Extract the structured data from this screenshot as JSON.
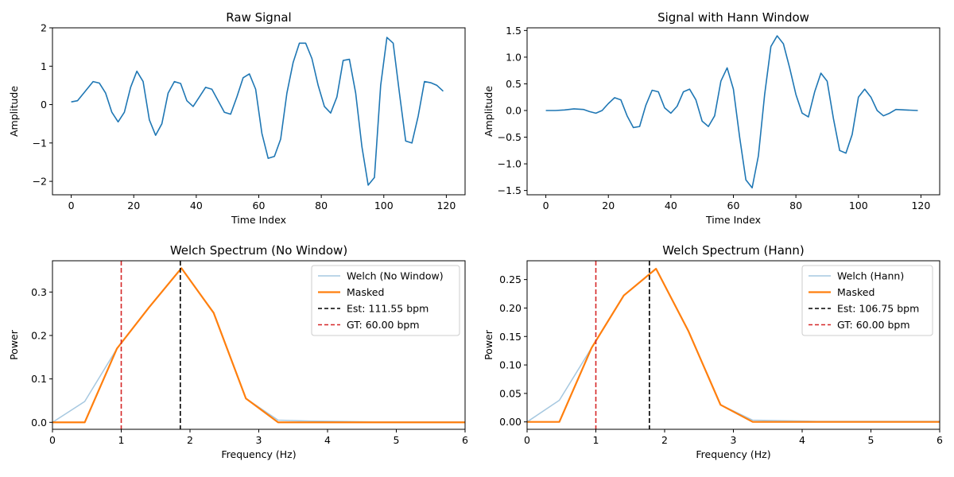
{
  "chart_data": [
    {
      "type": "line",
      "title": "Raw Signal",
      "xlabel": "Time Index",
      "ylabel": "Amplitude",
      "xlim": [
        -6,
        126
      ],
      "ylim": [
        -2.35,
        2.0
      ],
      "xticks": [
        0,
        20,
        40,
        60,
        80,
        100,
        120
      ],
      "xtick_labels": [
        "0",
        "20",
        "40",
        "60",
        "80",
        "100",
        "120"
      ],
      "yticks": [
        -2,
        -1,
        0,
        1,
        2
      ],
      "ytick_labels": [
        "−2",
        "−1",
        "0",
        "1",
        "2"
      ],
      "grid": false,
      "series": [
        {
          "color": "#1f77b4",
          "x": [
            0,
            2,
            4,
            7,
            9,
            11,
            13,
            15,
            17,
            19,
            21,
            23,
            25,
            27,
            29,
            31,
            33,
            35,
            37,
            39,
            41,
            43,
            45,
            47,
            49,
            51,
            53,
            55,
            57,
            59,
            61,
            63,
            65,
            67,
            69,
            71,
            73,
            75,
            77,
            79,
            81,
            83,
            85,
            87,
            89,
            91,
            93,
            95,
            97,
            99,
            101,
            103,
            105,
            107,
            109,
            111,
            113,
            115,
            117,
            119
          ],
          "y": [
            0.07,
            0.1,
            0.3,
            0.6,
            0.56,
            0.3,
            -0.2,
            -0.45,
            -0.2,
            0.45,
            0.87,
            0.6,
            -0.4,
            -0.8,
            -0.5,
            0.3,
            0.6,
            0.55,
            0.1,
            -0.05,
            0.2,
            0.45,
            0.4,
            0.1,
            -0.2,
            -0.25,
            0.2,
            0.7,
            0.8,
            0.4,
            -0.75,
            -1.4,
            -1.35,
            -0.9,
            0.3,
            1.1,
            1.6,
            1.6,
            1.2,
            0.5,
            -0.05,
            -0.22,
            0.2,
            1.15,
            1.18,
            0.3,
            -1.1,
            -2.1,
            -1.9,
            0.5,
            1.75,
            1.6,
            0.3,
            -0.95,
            -1.0,
            -0.3,
            0.6,
            0.57,
            0.5,
            0.35
          ]
        }
      ]
    },
    {
      "type": "line",
      "title": "Signal with Hann Window",
      "xlabel": "Time Index",
      "ylabel": "Amplitude",
      "xlim": [
        -6,
        126
      ],
      "ylim": [
        -1.58,
        1.55
      ],
      "xticks": [
        0,
        20,
        40,
        60,
        80,
        100,
        120
      ],
      "xtick_labels": [
        "0",
        "20",
        "40",
        "60",
        "80",
        "100",
        "120"
      ],
      "yticks": [
        -1.5,
        -1.0,
        -0.5,
        0.0,
        0.5,
        1.0,
        1.5
      ],
      "ytick_labels": [
        "−1.5",
        "−1.0",
        "−0.5",
        "0.0",
        "0.5",
        "1.0",
        "1.5"
      ],
      "grid": false,
      "series": [
        {
          "color": "#1f77b4",
          "x": [
            0,
            3,
            6,
            9,
            12,
            14,
            16,
            18,
            20,
            22,
            24,
            26,
            28,
            30,
            32,
            34,
            36,
            38,
            40,
            42,
            44,
            46,
            48,
            50,
            52,
            54,
            56,
            58,
            60,
            62,
            64,
            66,
            68,
            70,
            72,
            74,
            76,
            78,
            80,
            82,
            84,
            86,
            88,
            90,
            92,
            94,
            96,
            98,
            100,
            102,
            104,
            106,
            108,
            110,
            112,
            115,
            119
          ],
          "y": [
            0.0,
            0.0,
            0.01,
            0.03,
            0.02,
            -0.02,
            -0.05,
            0.0,
            0.13,
            0.24,
            0.2,
            -0.1,
            -0.32,
            -0.3,
            0.1,
            0.38,
            0.35,
            0.05,
            -0.05,
            0.08,
            0.35,
            0.4,
            0.2,
            -0.2,
            -0.3,
            -0.1,
            0.55,
            0.8,
            0.4,
            -0.5,
            -1.3,
            -1.45,
            -0.85,
            0.3,
            1.2,
            1.4,
            1.25,
            0.8,
            0.3,
            -0.05,
            -0.12,
            0.35,
            0.7,
            0.55,
            -0.15,
            -0.75,
            -0.8,
            -0.45,
            0.25,
            0.4,
            0.25,
            0.0,
            -0.1,
            -0.05,
            0.02,
            0.01,
            0.0
          ]
        }
      ]
    },
    {
      "type": "line",
      "title": "Welch Spectrum (No Window)",
      "xlabel": "Frequency (Hz)",
      "ylabel": "Power",
      "xlim": [
        0,
        6
      ],
      "ylim": [
        -0.016,
        0.372
      ],
      "xticks": [
        0,
        1,
        2,
        3,
        4,
        5,
        6
      ],
      "xtick_labels": [
        "0",
        "1",
        "2",
        "3",
        "4",
        "5",
        "6"
      ],
      "yticks": [
        0.0,
        0.1,
        0.2,
        0.3
      ],
      "ytick_labels": [
        "0.0",
        "0.1",
        "0.2",
        "0.3"
      ],
      "grid": false,
      "legend": "top-right",
      "series": [
        {
          "name": "Welch (No Window)",
          "color": "#a6c8e0",
          "style": "solid",
          "x": [
            0,
            0.469,
            0.938,
            1.406,
            1.875,
            2.344,
            2.813,
            3.281,
            3.75,
            4.219,
            4.688,
            5.156,
            5.625,
            6.0
          ],
          "y": [
            0.0,
            0.048,
            0.17,
            0.265,
            0.355,
            0.252,
            0.055,
            0.005,
            0.003,
            0.002,
            0.001,
            0.001,
            0.001,
            0.001
          ]
        },
        {
          "name": "Masked",
          "color": "#ff7f0e",
          "style": "solid",
          "x": [
            0,
            0.469,
            0.938,
            1.406,
            1.875,
            2.344,
            2.813,
            3.281,
            3.75,
            4.219,
            4.688,
            5.156,
            5.625,
            6.0
          ],
          "y": [
            0.0,
            0.0,
            0.17,
            0.265,
            0.355,
            0.252,
            0.055,
            0.0,
            0.0,
            0.0,
            0.0,
            0.0,
            0.0,
            0.0
          ]
        }
      ],
      "vlines": [
        {
          "name": "Est: 111.55 bpm",
          "x": 1.859,
          "color": "#000000"
        },
        {
          "name": "GT: 60.00 bpm",
          "x": 1.0,
          "color": "#d62728"
        }
      ]
    },
    {
      "type": "line",
      "title": "Welch Spectrum (Hann)",
      "xlabel": "Frequency (Hz)",
      "ylabel": "Power",
      "xlim": [
        0,
        6
      ],
      "ylim": [
        -0.013,
        0.283
      ],
      "xticks": [
        0,
        1,
        2,
        3,
        4,
        5,
        6
      ],
      "xtick_labels": [
        "0",
        "1",
        "2",
        "3",
        "4",
        "5",
        "6"
      ],
      "yticks": [
        0.0,
        0.05,
        0.1,
        0.15,
        0.2,
        0.25
      ],
      "ytick_labels": [
        "0.00",
        "0.05",
        "0.10",
        "0.15",
        "0.20",
        "0.25"
      ],
      "grid": false,
      "legend": "top-right",
      "series": [
        {
          "name": "Welch (Hann)",
          "color": "#a6c8e0",
          "style": "solid",
          "x": [
            0,
            0.469,
            0.938,
            1.406,
            1.875,
            2.344,
            2.813,
            3.281,
            3.75,
            4.219,
            4.688,
            5.156,
            5.625,
            6.0
          ],
          "y": [
            0.0,
            0.038,
            0.13,
            0.222,
            0.269,
            0.16,
            0.03,
            0.003,
            0.002,
            0.001,
            0.001,
            0.001,
            0.001,
            0.001
          ]
        },
        {
          "name": "Masked",
          "color": "#ff7f0e",
          "style": "solid",
          "x": [
            0,
            0.469,
            0.938,
            1.406,
            1.875,
            2.344,
            2.813,
            3.281,
            3.75,
            4.219,
            4.688,
            5.156,
            5.625,
            6.0
          ],
          "y": [
            0.0,
            0.0,
            0.13,
            0.222,
            0.269,
            0.16,
            0.03,
            0.0,
            0.0,
            0.0,
            0.0,
            0.0,
            0.0,
            0.0
          ]
        }
      ],
      "vlines": [
        {
          "name": "Est: 106.75 bpm",
          "x": 1.779,
          "color": "#000000"
        },
        {
          "name": "GT: 60.00 bpm",
          "x": 1.0,
          "color": "#d62728"
        }
      ]
    }
  ]
}
